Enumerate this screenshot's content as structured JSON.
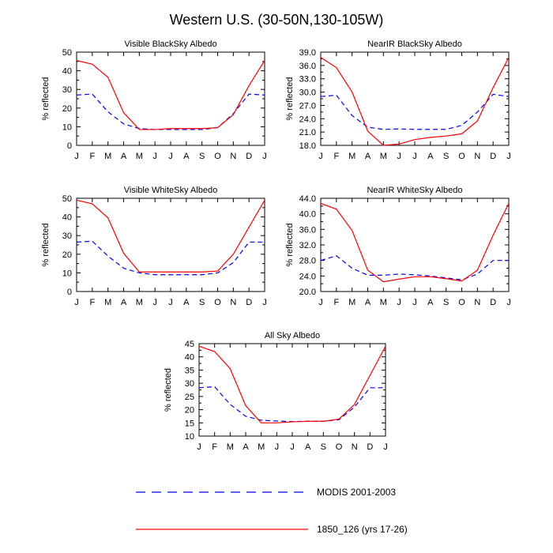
{
  "figure_title": "Western U.S. (30-50N,130-105W)",
  "colors": {
    "modis": "#0000ff",
    "model": "#ff0000",
    "axis": "#000000"
  },
  "legend": [
    {
      "label": "MODIS 2001-2003",
      "style": "dashed",
      "color": "#0000ff"
    },
    {
      "label": "1850_126 (yrs 17-26)",
      "style": "solid",
      "color": "#ff0000"
    }
  ],
  "chart_data": [
    {
      "type": "line",
      "title": "Visible BlackSky Albedo",
      "ylabel": "% reflected",
      "ylim": [
        0,
        50
      ],
      "yticks": [
        "0",
        "10",
        "20",
        "30",
        "40",
        "50"
      ],
      "categories": [
        "J",
        "F",
        "M",
        "A",
        "M",
        "J",
        "J",
        "A",
        "S",
        "O",
        "N",
        "D",
        "J"
      ],
      "series": [
        {
          "name": "MODIS 2001-2003",
          "values": [
            27,
            27.5,
            18,
            11.5,
            9,
            8.5,
            8.5,
            8.5,
            8.5,
            9.5,
            17,
            27.5,
            27
          ]
        },
        {
          "name": "1850_126 (yrs 17-26)",
          "values": [
            45.5,
            43.5,
            36.5,
            17.5,
            8.5,
            8.5,
            9,
            9,
            9,
            9.5,
            16.5,
            32,
            45.5
          ]
        }
      ]
    },
    {
      "type": "line",
      "title": "NearIR BlackSky Albedo",
      "ylabel": "% reflected",
      "ylim": [
        18,
        39
      ],
      "yticks": [
        "18.0",
        "21.0",
        "24.0",
        "27.0",
        "30.0",
        "33.0",
        "36.0",
        "39.0"
      ],
      "categories": [
        "J",
        "F",
        "M",
        "A",
        "M",
        "J",
        "J",
        "A",
        "S",
        "O",
        "N",
        "D",
        "J"
      ],
      "series": [
        {
          "name": "MODIS 2001-2003",
          "values": [
            29,
            29.3,
            24.7,
            22.1,
            21.6,
            21.7,
            21.6,
            21.6,
            21.6,
            22.5,
            25.5,
            29.5,
            29
          ]
        },
        {
          "name": "1850_126 (yrs 17-26)",
          "values": [
            37.8,
            35.5,
            30,
            21.2,
            18,
            18.3,
            19.3,
            19.8,
            20.1,
            20.6,
            23.5,
            31,
            37.8
          ]
        }
      ]
    },
    {
      "type": "line",
      "title": "Visible WhiteSky Albedo",
      "ylabel": "% reflected",
      "ylim": [
        0,
        50
      ],
      "yticks": [
        "0",
        "10",
        "20",
        "30",
        "40",
        "50"
      ],
      "categories": [
        "J",
        "F",
        "M",
        "A",
        "M",
        "J",
        "J",
        "A",
        "S",
        "O",
        "N",
        "D",
        "J"
      ],
      "series": [
        {
          "name": "MODIS 2001-2003",
          "values": [
            26.5,
            27,
            19,
            12.5,
            10,
            9,
            9,
            9,
            9,
            10,
            15.5,
            26.5,
            26.5
          ]
        },
        {
          "name": "1850_126 (yrs 17-26)",
          "values": [
            49,
            47,
            39.5,
            20.5,
            10.5,
            10.5,
            10.5,
            10.5,
            10.5,
            11,
            20,
            34.5,
            49
          ]
        }
      ]
    },
    {
      "type": "line",
      "title": "NearIR WhiteSky Albedo",
      "ylabel": "% reflected",
      "ylim": [
        20,
        44
      ],
      "yticks": [
        "20.0",
        "24.0",
        "28.0",
        "32.0",
        "36.0",
        "40.0",
        "44.0"
      ],
      "categories": [
        "J",
        "F",
        "M",
        "A",
        "M",
        "J",
        "J",
        "A",
        "S",
        "O",
        "N",
        "D",
        "J"
      ],
      "series": [
        {
          "name": "MODIS 2001-2003",
          "values": [
            28,
            29.2,
            26,
            24.2,
            24.2,
            24.5,
            24.3,
            24,
            23.5,
            23,
            24.5,
            28,
            28
          ]
        },
        {
          "name": "1850_126 (yrs 17-26)",
          "values": [
            42.7,
            41.2,
            35.7,
            25.5,
            22.5,
            23.2,
            23.8,
            23.8,
            23.3,
            22.7,
            25.5,
            34.5,
            42.7
          ]
        }
      ]
    },
    {
      "type": "line",
      "title": "All Sky Albedo",
      "ylabel": "% reflected",
      "ylim": [
        10,
        45
      ],
      "yticks": [
        "10",
        "15",
        "20",
        "25",
        "30",
        "35",
        "40",
        "45"
      ],
      "categories": [
        "J",
        "F",
        "M",
        "A",
        "M",
        "J",
        "J",
        "A",
        "S",
        "O",
        "N",
        "D",
        "J"
      ],
      "series": [
        {
          "name": "MODIS 2001-2003",
          "values": [
            28.3,
            28.7,
            22,
            17.5,
            16,
            15.7,
            15.5,
            15.6,
            15.6,
            16.2,
            21,
            28.3,
            28.3
          ]
        },
        {
          "name": "1850_126 (yrs 17-26)",
          "values": [
            44,
            42,
            35.5,
            21.5,
            15,
            15,
            15.4,
            15.6,
            15.6,
            16.4,
            22,
            33,
            44
          ]
        }
      ]
    }
  ]
}
